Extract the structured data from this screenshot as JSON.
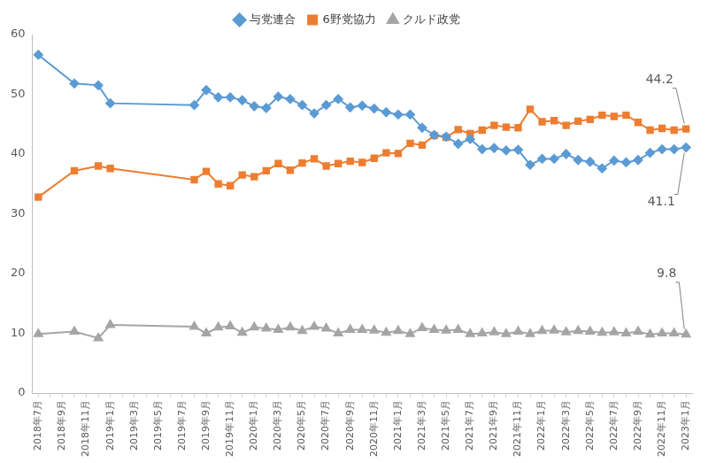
{
  "chart_data": {
    "type": "line",
    "categories": [
      "2018年7月",
      null,
      "2018年9月",
      null,
      "2018年11月",
      null,
      "2019年1月",
      null,
      "2019年3月",
      null,
      "2019年5月",
      null,
      "2019年7月",
      null,
      "2019年9月",
      null,
      "2019年11月",
      null,
      "2020年1月",
      null,
      "2020年3月",
      null,
      "2020年5月",
      null,
      "2020年7月",
      null,
      "2020年9月",
      null,
      "2020年11月",
      null,
      "2021年1月",
      null,
      "2021年3月",
      null,
      "2021年5月",
      null,
      "2021年7月",
      null,
      "2021年9月",
      null,
      "2021年11月",
      null,
      "2022年1月",
      null,
      "2022年3月",
      null,
      "2022年5月",
      null,
      "2022年7月",
      null,
      "2022年9月",
      null,
      "2022年11月",
      null,
      "2023年1月"
    ],
    "series": [
      {
        "name": "与党連合",
        "color": "#5b9bd5",
        "marker": "diamond",
        "values": [
          56.6,
          null,
          null,
          51.8,
          null,
          51.5,
          48.5,
          null,
          null,
          null,
          null,
          null,
          null,
          48.2,
          50.7,
          49.5,
          49.5,
          49.0,
          48.0,
          47.7,
          49.6,
          49.2,
          48.2,
          46.8,
          48.2,
          49.2,
          47.8,
          48.1,
          47.6,
          47.0,
          46.6,
          46.6,
          44.4,
          43.2,
          42.9,
          41.7,
          42.5,
          40.8,
          41.0,
          40.6,
          40.7,
          38.2,
          39.2,
          39.2,
          40.0,
          39.0,
          38.7,
          37.6,
          38.9,
          38.6,
          39.0,
          40.2,
          40.8,
          40.8,
          41.1
        ]
      },
      {
        "name": "6野党協力",
        "color": "#ed7d31",
        "marker": "square",
        "values": [
          32.8,
          null,
          null,
          37.2,
          null,
          38.0,
          37.6,
          null,
          null,
          null,
          null,
          null,
          null,
          35.7,
          37.1,
          35.0,
          34.7,
          36.5,
          36.2,
          37.2,
          38.4,
          37.3,
          38.5,
          39.2,
          38.0,
          38.4,
          38.8,
          38.6,
          39.3,
          40.2,
          40.1,
          41.8,
          41.5,
          43.1,
          42.8,
          44.1,
          43.4,
          44.0,
          44.8,
          44.5,
          44.4,
          47.5,
          45.4,
          45.6,
          44.8,
          45.5,
          45.8,
          46.5,
          46.3,
          46.5,
          45.3,
          44.0,
          44.3,
          44.0,
          44.2
        ]
      },
      {
        "name": "クルド政党",
        "color": "#a5a5a5",
        "marker": "triangle",
        "values": [
          9.9,
          null,
          null,
          10.3,
          null,
          9.2,
          11.4,
          null,
          null,
          null,
          null,
          null,
          null,
          11.1,
          10.0,
          11.0,
          11.2,
          10.1,
          11.0,
          10.8,
          10.6,
          11.0,
          10.4,
          11.1,
          10.8,
          10.0,
          10.6,
          10.6,
          10.5,
          10.1,
          10.4,
          9.9,
          10.9,
          10.6,
          10.5,
          10.6,
          9.9,
          10.0,
          10.2,
          9.9,
          10.3,
          9.9,
          10.4,
          10.5,
          10.2,
          10.4,
          10.3,
          10.1,
          10.2,
          10.0,
          10.3,
          9.8,
          10.0,
          10.0,
          9.8
        ]
      }
    ],
    "ylim": [
      0,
      60
    ],
    "yticks": [
      0,
      10,
      20,
      30,
      40,
      50,
      60
    ],
    "grid": false,
    "legend": "top",
    "annotations": [
      {
        "series": "6野党協力",
        "text": "44.2"
      },
      {
        "series": "与党連合",
        "text": "41.1"
      },
      {
        "series": "クルド政党",
        "text": "9.8"
      }
    ]
  }
}
